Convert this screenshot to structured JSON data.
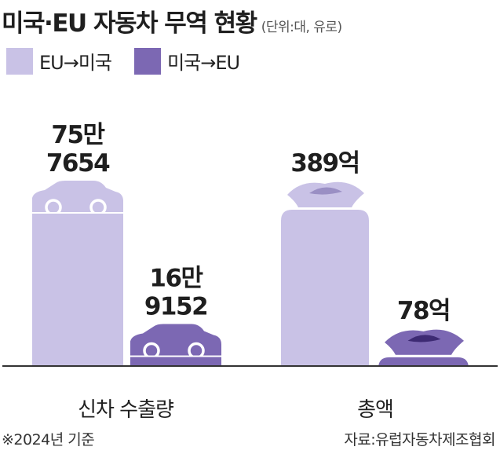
{
  "header": {
    "title": "미국·EU 자동차 무역 현황",
    "unit": "(단위:대, 유로)"
  },
  "legend": [
    {
      "label": "EU→미국",
      "color": "#c9c2e6"
    },
    {
      "label": "미국→EU",
      "color": "#7c68b3"
    }
  ],
  "colors": {
    "light": "#c9c2e6",
    "dark": "#7c68b3",
    "dark_bag_tie": "#9a8fc4",
    "darkest_bag_tie": "#3d2a73",
    "baseline": "#333333"
  },
  "footnote": "※2024년 기준",
  "source": "자료:유럽자동차제조협회",
  "chart_data": {
    "type": "bar",
    "groups": [
      {
        "category": "신차 수출량",
        "icon": "car-icon",
        "bars": [
          {
            "series": "EU→미국",
            "value": 757654,
            "label_lines": [
              "75만",
              "7654"
            ]
          },
          {
            "series": "미국→EU",
            "value": 169152,
            "label_lines": [
              "16만",
              "9152"
            ]
          }
        ]
      },
      {
        "category": "총액",
        "icon": "money-bag-icon",
        "bars": [
          {
            "series": "EU→미국",
            "value": 38900000000,
            "label_lines": [
              "389억"
            ]
          },
          {
            "series": "미국→EU",
            "value": 7800000000,
            "label_lines": [
              "78억"
            ]
          }
        ]
      }
    ],
    "series": [
      {
        "name": "EU→미국"
      },
      {
        "name": "미국→EU"
      }
    ]
  }
}
